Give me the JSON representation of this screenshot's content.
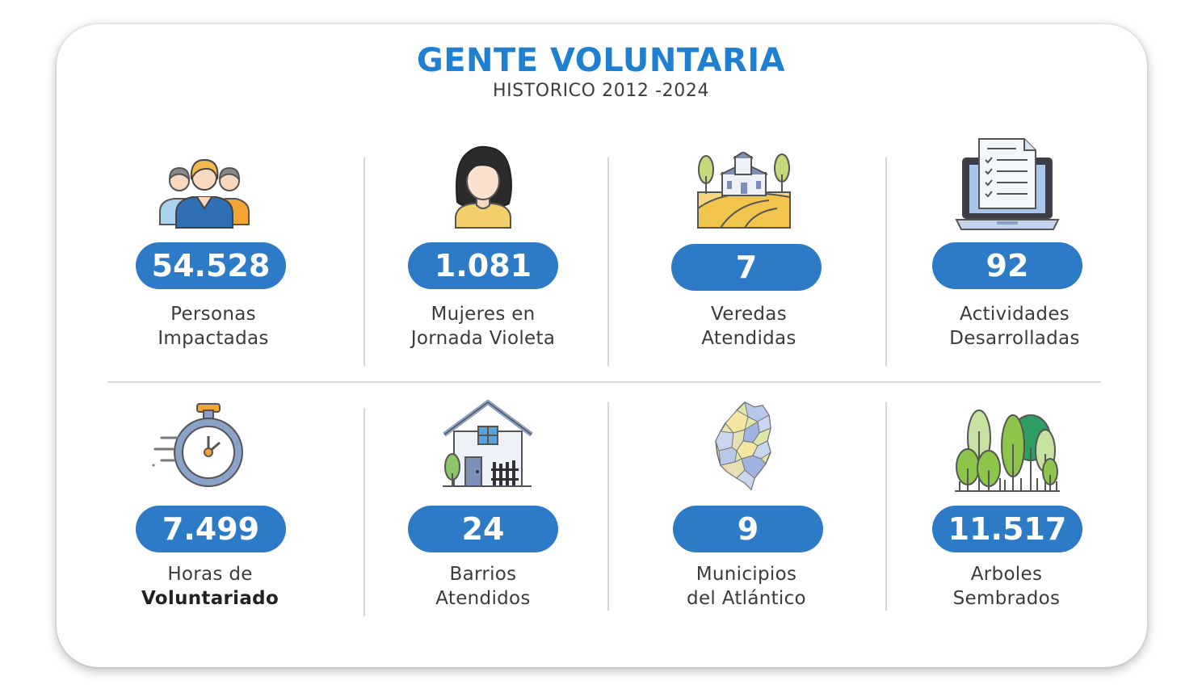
{
  "header": {
    "title": "GENTE VOLUNTARIA",
    "subtitle": "HISTORICO 2012 -2024"
  },
  "stats": [
    {
      "value": "54.528",
      "line1": "Personas",
      "line2": "Impactadas",
      "icon": "people-group-icon"
    },
    {
      "value": "1.081",
      "line1": "Mujeres en",
      "line2": "Jornada Violeta",
      "icon": "woman-icon"
    },
    {
      "value": "7",
      "line1": "Veredas",
      "line2": "Atendidas",
      "icon": "rural-village-icon"
    },
    {
      "value": "92",
      "line1": "Actividades",
      "line2": "Desarrolladas",
      "icon": "laptop-checklist-icon"
    },
    {
      "value": "7.499",
      "line1": "Horas de",
      "line2": "Voluntariado",
      "icon": "stopwatch-icon"
    },
    {
      "value": "24",
      "line1": "Barrios",
      "line2": "Atendidos",
      "icon": "house-icon"
    },
    {
      "value": "9",
      "line1": "Municipios",
      "line2": "del Atlántico",
      "icon": "atlantico-map-icon"
    },
    {
      "value": "11.517",
      "line1": "Arboles",
      "line2": "Sembrados",
      "icon": "trees-icon"
    }
  ],
  "colors": {
    "accent": "#2d7ac6",
    "title": "#1f7fd0"
  }
}
